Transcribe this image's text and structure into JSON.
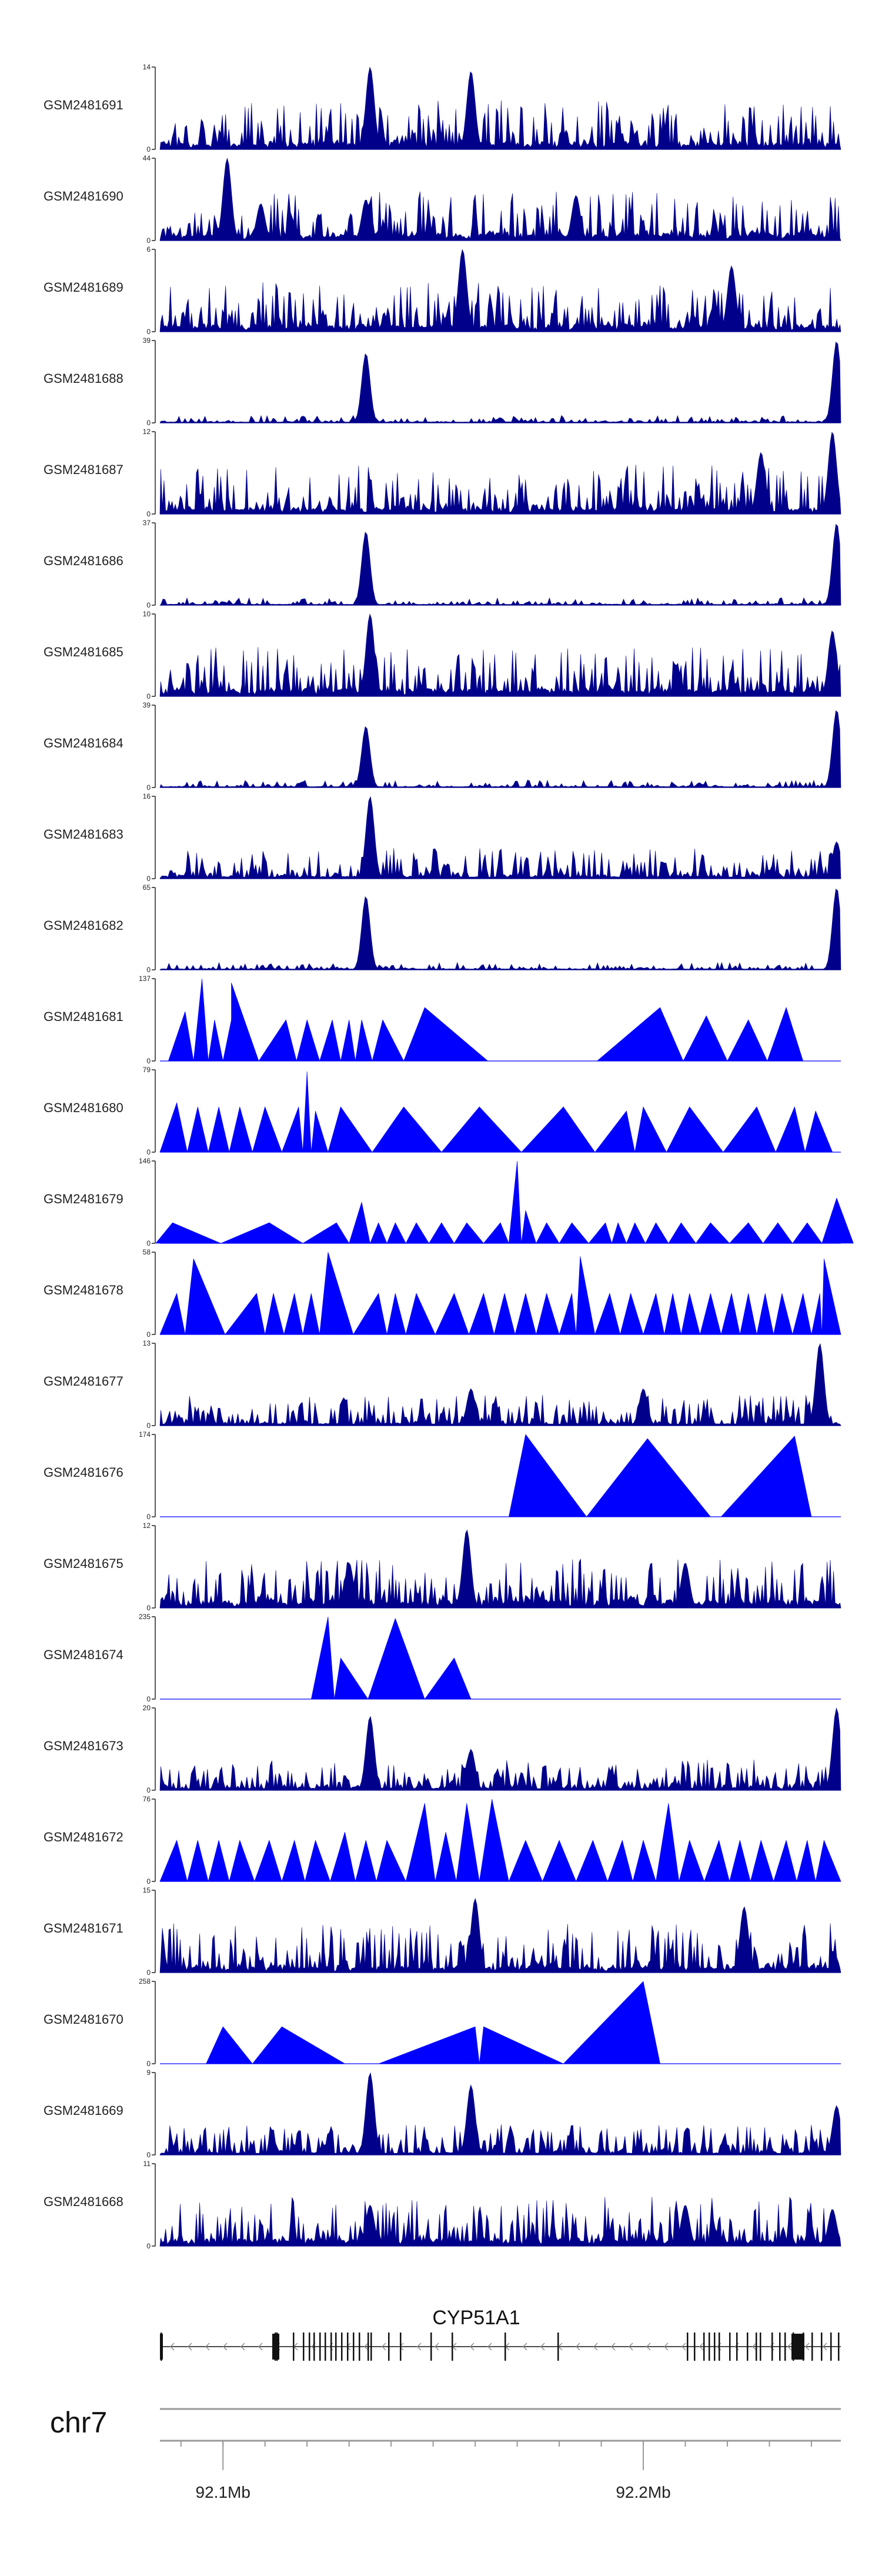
{
  "chart_data": {
    "type": "area",
    "title": "",
    "gene": "CYP51A1",
    "chromosome": "chr7",
    "x_range_mb": [
      92.085,
      92.247
    ],
    "x_ticks": [
      {
        "value": 92.1,
        "label": "92.1Mb"
      },
      {
        "value": 92.2,
        "label": "92.2Mb"
      }
    ],
    "colors": {
      "signal": "#0000ff",
      "signal_dark": "#00008b",
      "axis": "#222222",
      "gene": "#111111"
    },
    "tracks": [
      {
        "name": "GSM2481691",
        "ymax": 14,
        "style": "dense",
        "peaks": [
          [
            92.135,
            1.0
          ],
          [
            92.159,
            0.95
          ],
          [
            92.135,
            0.6
          ]
        ]
      },
      {
        "name": "GSM2481690",
        "ymax": 44,
        "style": "dense",
        "peaks": [
          [
            92.101,
            1.0
          ],
          [
            92.109,
            0.45
          ],
          [
            92.134,
            0.5
          ],
          [
            92.184,
            0.55
          ]
        ]
      },
      {
        "name": "GSM2481689",
        "ymax": 6,
        "style": "dense",
        "peaks": [
          [
            92.157,
            1.0
          ],
          [
            92.221,
            0.8
          ]
        ]
      },
      {
        "name": "GSM2481688",
        "ymax": 39,
        "style": "peaks",
        "peaks": [
          [
            92.134,
            0.85
          ],
          [
            92.246,
            1.0
          ]
        ]
      },
      {
        "name": "GSM2481687",
        "ymax": 12,
        "style": "dense",
        "peaks": [
          [
            92.245,
            1.0
          ],
          [
            92.228,
            0.75
          ]
        ]
      },
      {
        "name": "GSM2481686",
        "ymax": 37,
        "style": "peaks",
        "peaks": [
          [
            92.134,
            0.9
          ],
          [
            92.246,
            1.0
          ]
        ]
      },
      {
        "name": "GSM2481685",
        "ymax": 10,
        "style": "dense",
        "peaks": [
          [
            92.135,
            1.0
          ],
          [
            92.245,
            0.8
          ]
        ]
      },
      {
        "name": "GSM2481684",
        "ymax": 39,
        "style": "peaks",
        "peaks": [
          [
            92.134,
            0.75
          ],
          [
            92.246,
            0.95
          ]
        ]
      },
      {
        "name": "GSM2481683",
        "ymax": 16,
        "style": "sparse",
        "peaks": [
          [
            92.135,
            1.0
          ],
          [
            92.246,
            0.45
          ]
        ]
      },
      {
        "name": "GSM2481682",
        "ymax": 65,
        "style": "peaks",
        "peaks": [
          [
            92.134,
            0.9
          ],
          [
            92.246,
            1.0
          ]
        ]
      },
      {
        "name": "GSM2481681",
        "ymax": 137,
        "style": "triangles",
        "peaks": [
          [
            92.091,
            0.6
          ],
          [
            92.095,
            1.0
          ],
          [
            92.098,
            0.5
          ],
          [
            92.102,
            0.5
          ],
          [
            92.102,
            0.95
          ],
          [
            92.115,
            0.5
          ],
          [
            92.12,
            0.5
          ],
          [
            92.126,
            0.5
          ],
          [
            92.13,
            0.5
          ],
          [
            92.133,
            0.5
          ],
          [
            92.138,
            0.5
          ],
          [
            92.148,
            0.65
          ],
          [
            92.204,
            0.65
          ],
          [
            92.215,
            0.55
          ],
          [
            92.225,
            0.5
          ],
          [
            92.234,
            0.65
          ]
        ]
      },
      {
        "name": "GSM2481680",
        "ymax": 79,
        "style": "triangles",
        "peaks": [
          [
            92.089,
            0.6
          ],
          [
            92.094,
            0.55
          ],
          [
            92.099,
            0.55
          ],
          [
            92.104,
            0.55
          ],
          [
            92.11,
            0.55
          ],
          [
            92.118,
            0.55
          ],
          [
            92.122,
            0.5
          ],
          [
            92.12,
            0.98
          ],
          [
            92.128,
            0.55
          ],
          [
            92.143,
            0.55
          ],
          [
            92.161,
            0.55
          ],
          [
            92.181,
            0.55
          ],
          [
            92.196,
            0.5
          ],
          [
            92.2,
            0.55
          ],
          [
            92.211,
            0.55
          ],
          [
            92.227,
            0.55
          ],
          [
            92.236,
            0.55
          ],
          [
            92.241,
            0.5
          ]
        ]
      },
      {
        "name": "GSM2481679",
        "ymax": 146,
        "style": "triangles",
        "peaks": [
          [
            92.088,
            0.25
          ],
          [
            92.111,
            0.25
          ],
          [
            92.127,
            0.25
          ],
          [
            92.133,
            0.5
          ],
          [
            92.137,
            0.25
          ],
          [
            92.141,
            0.25
          ],
          [
            92.146,
            0.25
          ],
          [
            92.152,
            0.25
          ],
          [
            92.158,
            0.25
          ],
          [
            92.166,
            0.25
          ],
          [
            92.17,
            1.0
          ],
          [
            92.172,
            0.4
          ],
          [
            92.177,
            0.25
          ],
          [
            92.183,
            0.25
          ],
          [
            92.191,
            0.25
          ],
          [
            92.194,
            0.25
          ],
          [
            92.198,
            0.25
          ],
          [
            92.203,
            0.25
          ],
          [
            92.209,
            0.25
          ],
          [
            92.216,
            0.25
          ],
          [
            92.225,
            0.25
          ],
          [
            92.232,
            0.25
          ],
          [
            92.239,
            0.25
          ],
          [
            92.246,
            0.55
          ]
        ]
      },
      {
        "name": "GSM2481678",
        "ymax": 58,
        "style": "triangles",
        "peaks": [
          [
            92.089,
            0.5
          ],
          [
            92.093,
            0.92
          ],
          [
            92.108,
            0.5
          ],
          [
            92.112,
            0.5
          ],
          [
            92.117,
            0.5
          ],
          [
            92.121,
            0.5
          ],
          [
            92.125,
            1.0
          ],
          [
            92.137,
            0.5
          ],
          [
            92.141,
            0.5
          ],
          [
            92.146,
            0.5
          ],
          [
            92.155,
            0.5
          ],
          [
            92.162,
            0.5
          ],
          [
            92.167,
            0.5
          ],
          [
            92.172,
            0.5
          ],
          [
            92.177,
            0.5
          ],
          [
            92.183,
            0.5
          ],
          [
            92.185,
            0.95
          ],
          [
            92.192,
            0.5
          ],
          [
            92.197,
            0.5
          ],
          [
            92.203,
            0.5
          ],
          [
            92.207,
            0.5
          ],
          [
            92.211,
            0.5
          ],
          [
            92.216,
            0.5
          ],
          [
            92.221,
            0.5
          ],
          [
            92.225,
            0.5
          ],
          [
            92.229,
            0.5
          ],
          [
            92.233,
            0.5
          ],
          [
            92.238,
            0.5
          ],
          [
            92.242,
            0.5
          ],
          [
            92.243,
            0.92
          ]
        ]
      },
      {
        "name": "GSM2481677",
        "ymax": 13,
        "style": "sparse",
        "peaks": [
          [
            92.159,
            0.45
          ],
          [
            92.2,
            0.45
          ],
          [
            92.242,
            1.0
          ]
        ]
      },
      {
        "name": "GSM2481676",
        "ymax": 174,
        "style": "triangles",
        "peaks": [
          [
            92.172,
            1.0
          ],
          [
            92.201,
            0.95
          ],
          [
            92.236,
            0.98
          ]
        ]
      },
      {
        "name": "GSM2481675",
        "ymax": 12,
        "style": "dense",
        "peaks": [
          [
            92.158,
            0.95
          ],
          [
            92.13,
            0.55
          ],
          [
            92.21,
            0.55
          ]
        ]
      },
      {
        "name": "GSM2481674",
        "ymax": 235,
        "style": "triangles",
        "peaks": [
          [
            92.125,
            1.0
          ],
          [
            92.128,
            0.5
          ],
          [
            92.141,
            0.98
          ],
          [
            92.155,
            0.5
          ]
        ]
      },
      {
        "name": "GSM2481673",
        "ymax": 20,
        "style": "sparse",
        "peaks": [
          [
            92.135,
            0.9
          ],
          [
            92.246,
            1.0
          ],
          [
            92.159,
            0.5
          ]
        ]
      },
      {
        "name": "GSM2481672",
        "ymax": 76,
        "style": "triangles",
        "peaks": [
          [
            92.089,
            0.5
          ],
          [
            92.094,
            0.5
          ],
          [
            92.099,
            0.5
          ],
          [
            92.104,
            0.5
          ],
          [
            92.111,
            0.5
          ],
          [
            92.117,
            0.5
          ],
          [
            92.122,
            0.5
          ],
          [
            92.129,
            0.6
          ],
          [
            92.134,
            0.5
          ],
          [
            92.139,
            0.5
          ],
          [
            92.148,
            0.95
          ],
          [
            92.153,
            0.6
          ],
          [
            92.158,
            0.95
          ],
          [
            92.164,
            1.0
          ],
          [
            92.172,
            0.5
          ],
          [
            92.18,
            0.5
          ],
          [
            92.188,
            0.5
          ],
          [
            92.195,
            0.5
          ],
          [
            92.2,
            0.5
          ],
          [
            92.206,
            0.95
          ],
          [
            92.211,
            0.5
          ],
          [
            92.218,
            0.5
          ],
          [
            92.223,
            0.5
          ],
          [
            92.228,
            0.5
          ],
          [
            92.234,
            0.5
          ],
          [
            92.239,
            0.5
          ],
          [
            92.243,
            0.5
          ]
        ]
      },
      {
        "name": "GSM2481671",
        "ymax": 15,
        "style": "dense",
        "peaks": [
          [
            92.16,
            0.9
          ],
          [
            92.224,
            0.8
          ]
        ]
      },
      {
        "name": "GSM2481670",
        "ymax": 258,
        "style": "triangles",
        "peaks": [
          [
            92.1,
            0.45
          ],
          [
            92.114,
            0.45
          ],
          [
            92.16,
            0.45
          ],
          [
            92.162,
            0.45
          ],
          [
            92.2,
            1.0
          ]
        ]
      },
      {
        "name": "GSM2481669",
        "ymax": 9,
        "style": "sparse",
        "peaks": [
          [
            92.135,
            1.0
          ],
          [
            92.159,
            0.85
          ],
          [
            92.246,
            0.6
          ]
        ]
      },
      {
        "name": "GSM2481668",
        "ymax": 11,
        "style": "dense",
        "peaks": [
          [
            92.245,
            0.45
          ],
          [
            92.135,
            0.5
          ],
          [
            92.21,
            0.5
          ]
        ]
      }
    ]
  }
}
